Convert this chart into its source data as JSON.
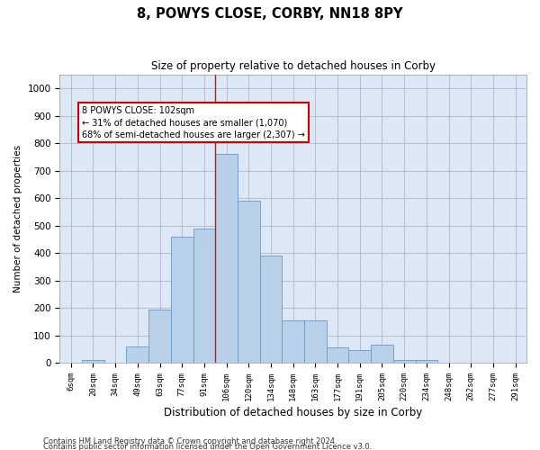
{
  "title": "8, POWYS CLOSE, CORBY, NN18 8PY",
  "subtitle": "Size of property relative to detached houses in Corby",
  "xlabel": "Distribution of detached houses by size in Corby",
  "ylabel": "Number of detached properties",
  "categories": [
    "6sqm",
    "20sqm",
    "34sqm",
    "49sqm",
    "63sqm",
    "77sqm",
    "91sqm",
    "106sqm",
    "120sqm",
    "134sqm",
    "148sqm",
    "163sqm",
    "177sqm",
    "191sqm",
    "205sqm",
    "220sqm",
    "234sqm",
    "248sqm",
    "262sqm",
    "277sqm",
    "291sqm"
  ],
  "values": [
    0,
    10,
    0,
    60,
    195,
    460,
    490,
    760,
    590,
    390,
    155,
    155,
    55,
    45,
    65,
    10,
    10,
    0,
    0,
    0,
    0
  ],
  "bar_color": "#b8d0e8",
  "bar_edge_color": "#6699cc",
  "annotation_line": 7,
  "annotation_text": "8 POWYS CLOSE: 102sqm\n← 31% of detached houses are smaller (1,070)\n68% of semi-detached houses are larger (2,307) →",
  "annotation_box_color": "#ffffff",
  "annotation_box_edge": "#cc0000",
  "footer1": "Contains HM Land Registry data © Crown copyright and database right 2024.",
  "footer2": "Contains public sector information licensed under the Open Government Licence v3.0.",
  "bg_color": "#ffffff",
  "plot_bg_color": "#dce8f5",
  "grid_color": "#b0b8c8",
  "ylim": [
    0,
    1050
  ],
  "yticks": [
    0,
    100,
    200,
    300,
    400,
    500,
    600,
    700,
    800,
    900,
    1000
  ]
}
